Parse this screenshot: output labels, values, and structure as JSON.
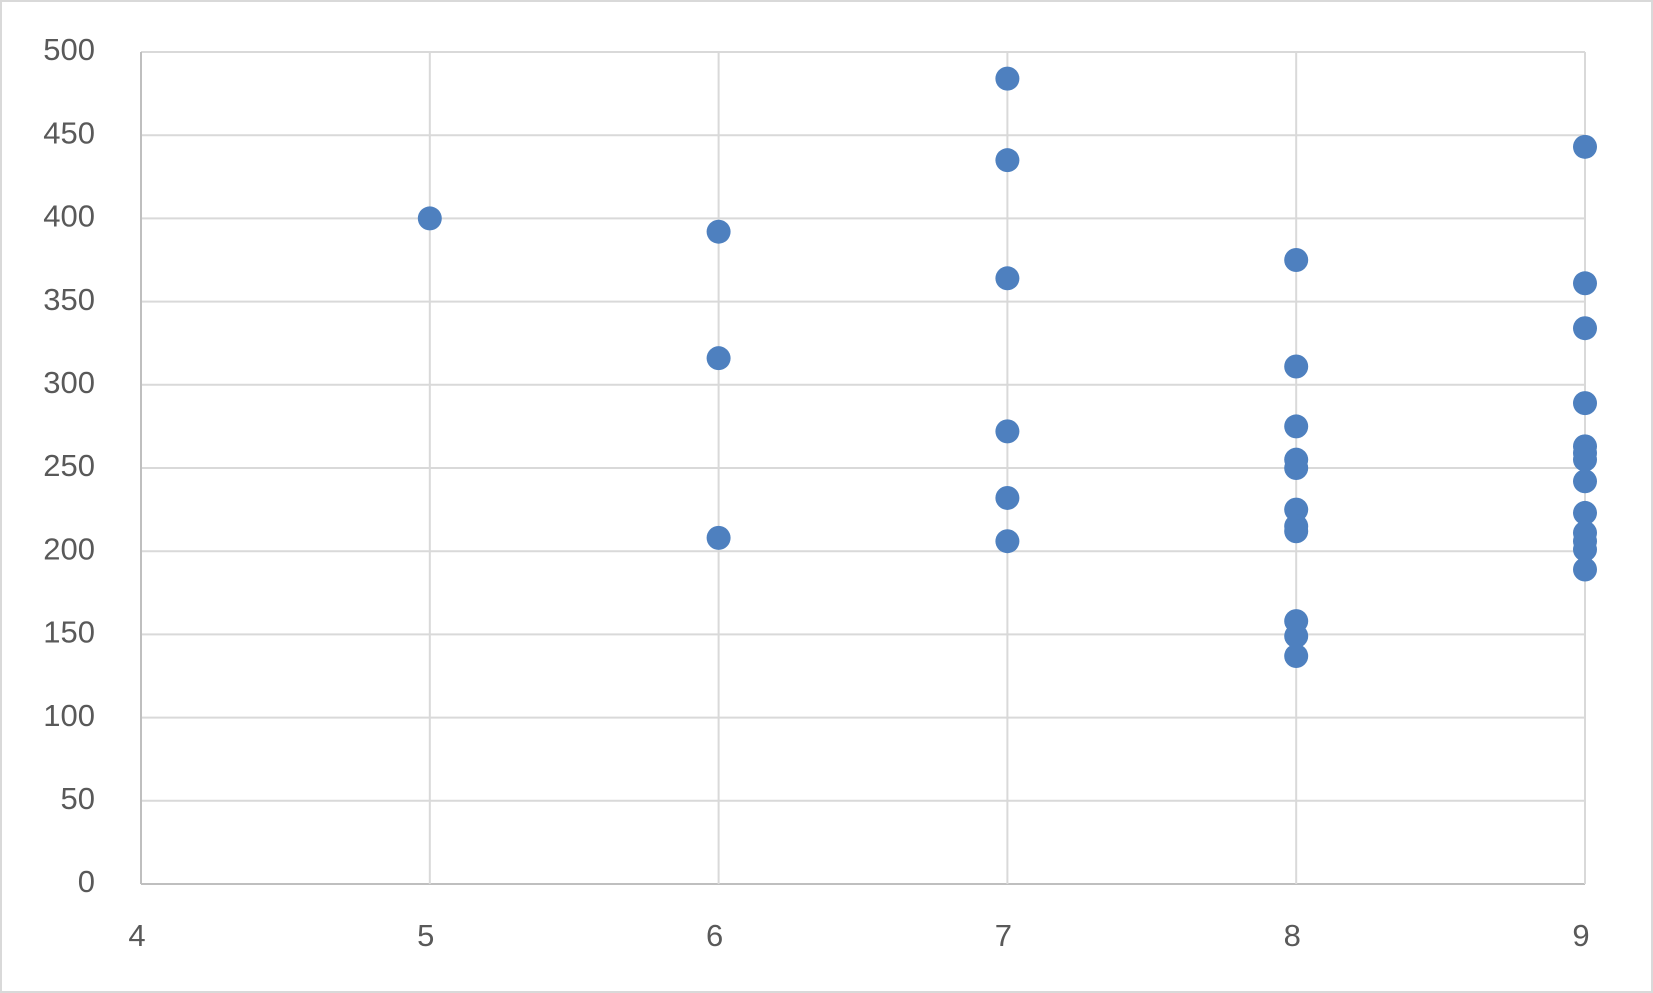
{
  "chart_data": {
    "type": "scatter",
    "x": [
      5,
      6,
      6,
      6,
      7,
      7,
      7,
      7,
      7,
      7,
      8,
      8,
      8,
      8,
      8,
      8,
      8,
      8,
      8,
      8,
      8,
      9,
      9,
      9,
      9,
      9,
      9,
      9,
      9,
      9,
      9,
      9,
      9,
      9
    ],
    "values": [
      400,
      392,
      316,
      208,
      484,
      435,
      364,
      272,
      232,
      206,
      375,
      311,
      275,
      255,
      250,
      225,
      215,
      212,
      158,
      149,
      137,
      443,
      361,
      334,
      289,
      263,
      259,
      255,
      242,
      223,
      211,
      206,
      201,
      189
    ],
    "color": "#4e80bf",
    "xlim": [
      4,
      9
    ],
    "xticks": [
      4,
      5,
      6,
      7,
      8,
      9
    ],
    "ylim": [
      0,
      500
    ],
    "yticks": [
      0,
      50,
      100,
      150,
      200,
      250,
      300,
      350,
      400,
      450,
      500
    ],
    "grid": true
  }
}
